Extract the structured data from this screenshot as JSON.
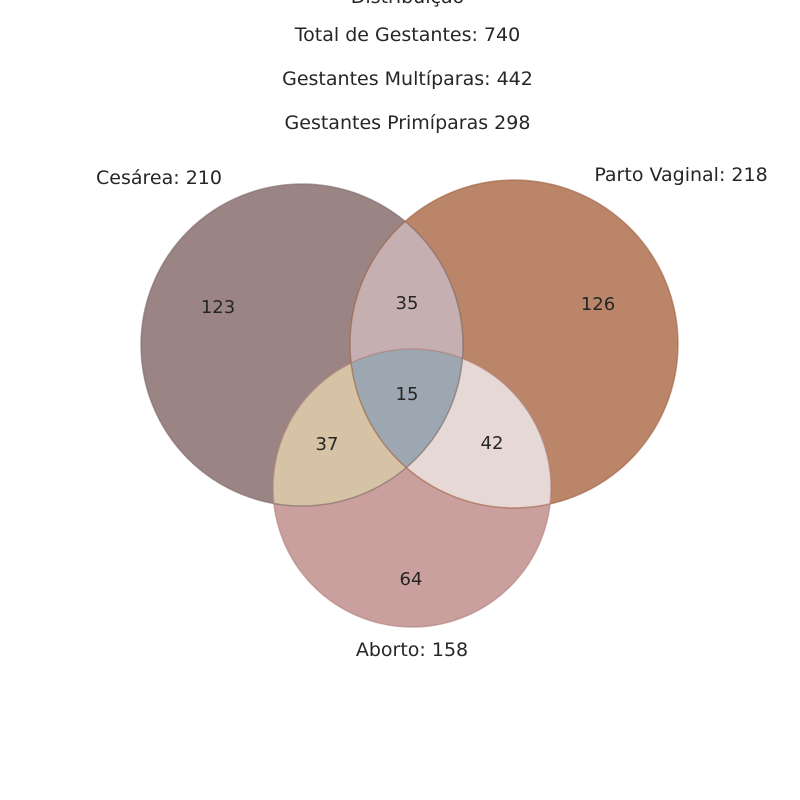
{
  "header": {
    "cut_title": "Distribuição",
    "total_line": "Total de Gestantes: 740",
    "multi_line": "Gestantes Multíparas: 442",
    "primi_line": "Gestantes Primíparas 298"
  },
  "sets": {
    "cesarea": {
      "label": "Cesárea: 210",
      "color": "#9a8584"
    },
    "vaginal": {
      "label": "Parto Vaginal: 218",
      "color": "#ba8569"
    },
    "aborto": {
      "label": "Aborto: 158",
      "color": "#c9a09d"
    }
  },
  "regions": {
    "cesarea_only": "123",
    "vaginal_only": "126",
    "aborto_only": "64",
    "cesarea_vaginal": "35",
    "cesarea_aborto": "37",
    "vaginal_aborto": "42",
    "all_three": "15"
  },
  "region_colors": {
    "cesarea_vaginal": "#c5afb1",
    "cesarea_aborto": "#d6c2a4",
    "vaginal_aborto": "#e6d8d5",
    "all_three": "#9ca7b1"
  },
  "chart_data": {
    "type": "venn",
    "sets": [
      "Cesárea",
      "Parto Vaginal",
      "Aborto"
    ],
    "set_totals": {
      "Cesárea": 210,
      "Parto Vaginal": 218,
      "Aborto": 158
    },
    "regions": {
      "Cesárea only": 123,
      "Parto Vaginal only": 126,
      "Aborto only": 64,
      "Cesárea ∩ Parto Vaginal only": 35,
      "Cesárea ∩ Aborto only": 37,
      "Parto Vaginal ∩ Aborto only": 42,
      "Cesárea ∩ Parto Vaginal ∩ Aborto": 15
    }
  }
}
